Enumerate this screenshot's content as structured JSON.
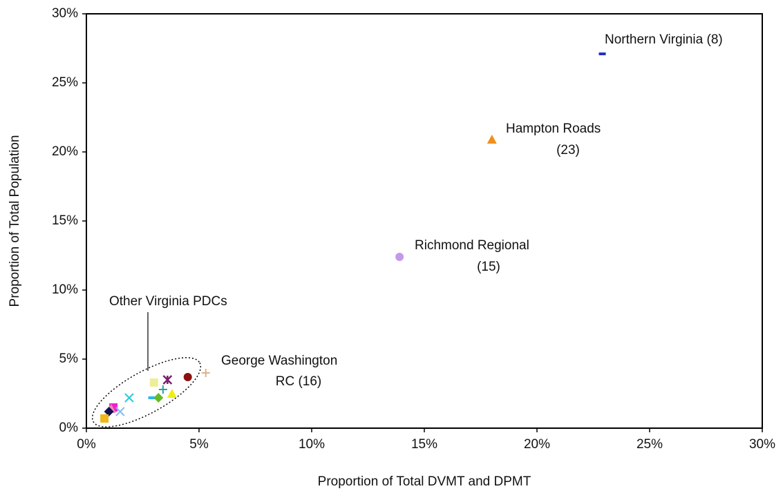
{
  "chart_data": {
    "type": "scatter",
    "xlabel": "Proportion of Total DVMT and DPMT",
    "ylabel": "Proportion of Total Population",
    "xlim": [
      0,
      30
    ],
    "ylim": [
      0,
      30
    ],
    "xticks": [
      {
        "value": 0,
        "label": "0%"
      },
      {
        "value": 5,
        "label": "5%"
      },
      {
        "value": 10,
        "label": "10%"
      },
      {
        "value": 15,
        "label": "15%"
      },
      {
        "value": 20,
        "label": "20%"
      },
      {
        "value": 25,
        "label": "25%"
      },
      {
        "value": 30,
        "label": "30%"
      }
    ],
    "yticks": [
      {
        "value": 0,
        "label": "0%"
      },
      {
        "value": 5,
        "label": "5%"
      },
      {
        "value": 10,
        "label": "10%"
      },
      {
        "value": 15,
        "label": "15%"
      },
      {
        "value": 20,
        "label": "20%"
      },
      {
        "value": 25,
        "label": "25%"
      },
      {
        "value": 30,
        "label": "30%"
      }
    ],
    "points": [
      {
        "x": 22.9,
        "y": 27.1,
        "color": "#1f2fd0",
        "marker": "dash"
      },
      {
        "x": 18.0,
        "y": 20.9,
        "color": "#f0901a",
        "marker": "triangle"
      },
      {
        "x": 13.9,
        "y": 12.4,
        "color": "#c49ae8",
        "marker": "circle"
      },
      {
        "x": 5.3,
        "y": 4.0,
        "color": "#d9b48a",
        "marker": "plus"
      },
      {
        "x": 4.5,
        "y": 3.7,
        "color": "#8b1010",
        "marker": "circle"
      },
      {
        "x": 3.6,
        "y": 3.5,
        "color": "#7a1f6e",
        "marker": "star"
      },
      {
        "x": 3.0,
        "y": 3.3,
        "color": "#eeee99",
        "marker": "square"
      },
      {
        "x": 3.4,
        "y": 2.8,
        "color": "#2aa0a0",
        "marker": "plus"
      },
      {
        "x": 2.9,
        "y": 2.2,
        "color": "#22bbee",
        "marker": "dash"
      },
      {
        "x": 3.2,
        "y": 2.2,
        "color": "#66bb22",
        "marker": "diamond"
      },
      {
        "x": 3.8,
        "y": 2.5,
        "color": "#eeee11",
        "marker": "triangle"
      },
      {
        "x": 1.9,
        "y": 2.2,
        "color": "#22ccdd",
        "marker": "x"
      },
      {
        "x": 1.2,
        "y": 1.5,
        "color": "#ee22cc",
        "marker": "square"
      },
      {
        "x": 1.1,
        "y": 1.4,
        "color": "#ee88bb",
        "marker": "triangle"
      },
      {
        "x": 1.5,
        "y": 1.2,
        "color": "#88bbee",
        "marker": "x"
      },
      {
        "x": 1.0,
        "y": 1.2,
        "color": "#111155",
        "marker": "diamond"
      },
      {
        "x": 0.8,
        "y": 0.7,
        "color": "#f0b81a",
        "marker": "square"
      }
    ],
    "annotations": [
      "Northern Virginia (8)",
      "Hampton Roads",
      "(23)",
      "Richmond Regional",
      "(15)",
      "George Washington",
      "RC (16)",
      "Other Virginia PDCs"
    ]
  }
}
